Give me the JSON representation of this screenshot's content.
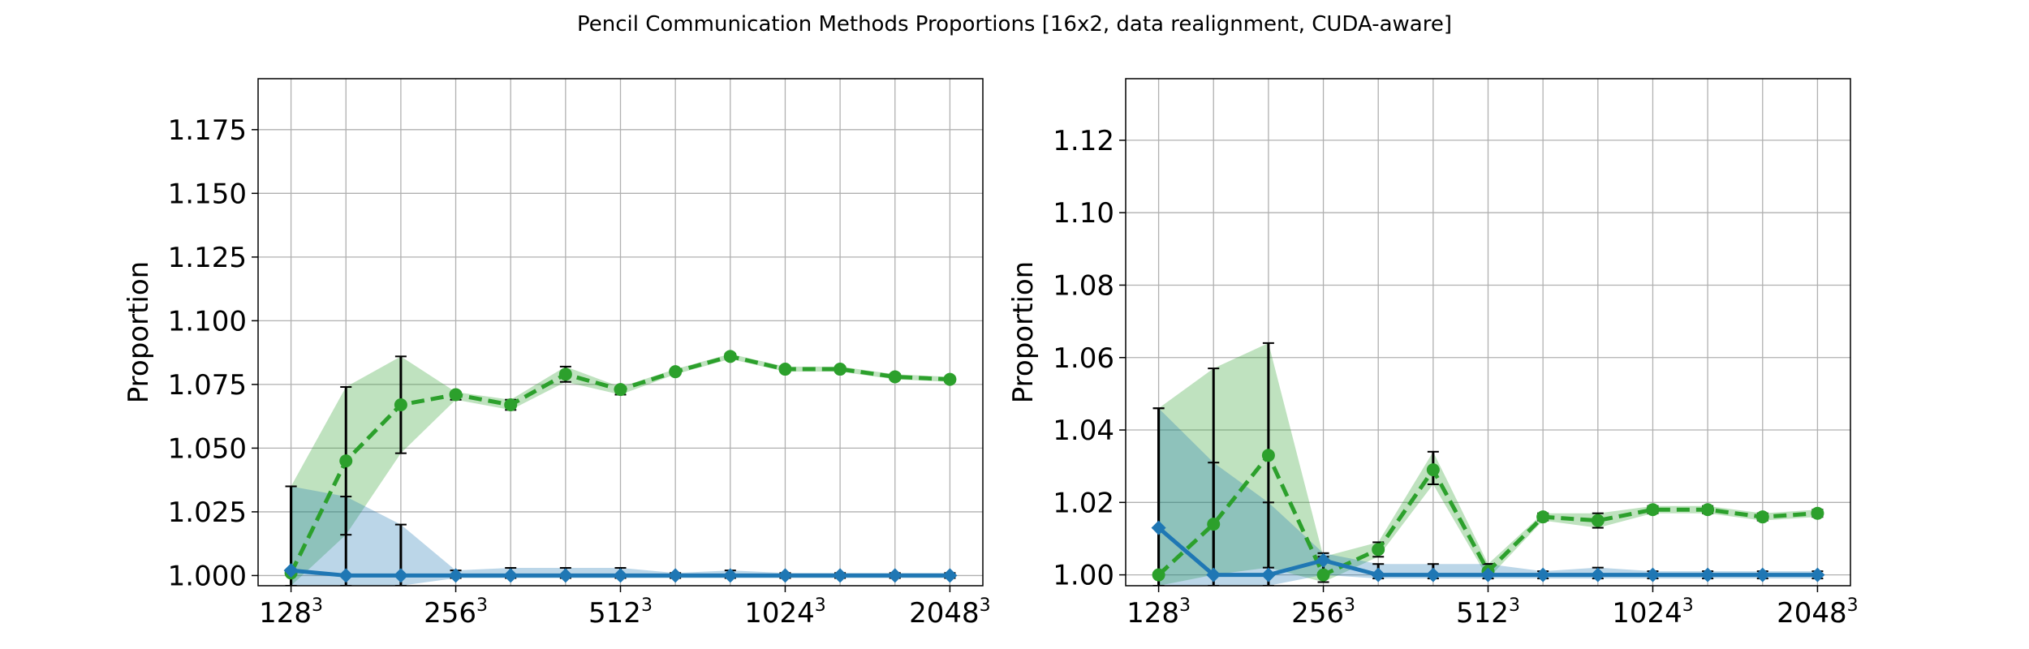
{
  "figure": {
    "title": "Pencil Communication Methods Proportions [16x2, data realignment, CUDA-aware]"
  },
  "colors": {
    "green": "#2ca02c",
    "blue": "#1f77b4",
    "green_band": "#2ca02c",
    "blue_band": "#1f77b4",
    "grid": "#b0b0b0",
    "errorbar": "#000000"
  },
  "chart_data": [
    {
      "type": "line",
      "ylabel": "Proportion",
      "xlabel": "",
      "x_positions": [
        0,
        1,
        2,
        3,
        4,
        5,
        6,
        7,
        8,
        9,
        10,
        11,
        12
      ],
      "xticks": [
        {
          "pos": 0,
          "base": "128",
          "exp": "3"
        },
        {
          "pos": 3,
          "base": "256",
          "exp": "3"
        },
        {
          "pos": 6,
          "base": "512",
          "exp": "3"
        },
        {
          "pos": 9,
          "base": "1024",
          "exp": "3"
        },
        {
          "pos": 12,
          "base": "2048",
          "exp": "3"
        }
      ],
      "xlim": [
        -0.6,
        12.6
      ],
      "ylim": [
        0.996,
        1.195
      ],
      "yticks": [
        "1.000",
        "1.025",
        "1.050",
        "1.075",
        "1.100",
        "1.125",
        "1.150",
        "1.175"
      ],
      "ytick_values": [
        1.0,
        1.025,
        1.05,
        1.075,
        1.1,
        1.125,
        1.15,
        1.175
      ],
      "grid": true,
      "series": [
        {
          "color": "green",
          "style": "dashed",
          "marker": "circle",
          "values": [
            1.001,
            1.045,
            1.067,
            1.071,
            1.067,
            1.079,
            1.073,
            1.08,
            1.086,
            1.081,
            1.081,
            1.078,
            1.077
          ],
          "lower": [
            0.996,
            1.016,
            1.048,
            1.069,
            1.065,
            1.076,
            1.071,
            1.079,
            1.085,
            1.08,
            1.08,
            1.077,
            1.076
          ],
          "upper": [
            1.035,
            1.074,
            1.086,
            1.072,
            1.069,
            1.082,
            1.074,
            1.081,
            1.087,
            1.082,
            1.082,
            1.079,
            1.078
          ]
        },
        {
          "color": "blue",
          "style": "solid",
          "marker": "diamond",
          "values": [
            1.002,
            1.0,
            1.0,
            1.0,
            1.0,
            1.0,
            1.0,
            1.0,
            1.0,
            1.0,
            1.0,
            1.0,
            1.0
          ],
          "lower": [
            0.996,
            0.996,
            0.996,
            0.999,
            0.999,
            0.999,
            0.999,
            0.999,
            0.999,
            0.999,
            0.999,
            0.999,
            0.999
          ],
          "upper": [
            1.035,
            1.031,
            1.02,
            1.002,
            1.003,
            1.003,
            1.003,
            1.001,
            1.002,
            1.001,
            1.001,
            1.001,
            1.001
          ]
        }
      ]
    },
    {
      "type": "line",
      "ylabel": "Proportion",
      "xlabel": "",
      "x_positions": [
        0,
        1,
        2,
        3,
        4,
        5,
        6,
        7,
        8,
        9,
        10,
        11,
        12
      ],
      "xticks": [
        {
          "pos": 0,
          "base": "128",
          "exp": "3"
        },
        {
          "pos": 3,
          "base": "256",
          "exp": "3"
        },
        {
          "pos": 6,
          "base": "512",
          "exp": "3"
        },
        {
          "pos": 9,
          "base": "1024",
          "exp": "3"
        },
        {
          "pos": 12,
          "base": "2048",
          "exp": "3"
        }
      ],
      "xlim": [
        -0.6,
        12.6
      ],
      "ylim": [
        0.997,
        1.137
      ],
      "yticks": [
        "1.00",
        "1.02",
        "1.04",
        "1.06",
        "1.08",
        "1.10",
        "1.12"
      ],
      "ytick_values": [
        1.0,
        1.02,
        1.04,
        1.06,
        1.08,
        1.1,
        1.12
      ],
      "grid": true,
      "series": [
        {
          "color": "green",
          "style": "dashed",
          "marker": "circle",
          "values": [
            1.0,
            1.014,
            1.033,
            1.0,
            1.007,
            1.029,
            1.001,
            1.016,
            1.015,
            1.018,
            1.018,
            1.016,
            1.017
          ],
          "lower": [
            0.997,
            1.0,
            1.002,
            0.998,
            1.005,
            1.025,
            0.999,
            1.015,
            1.013,
            1.017,
            1.017,
            1.015,
            1.016
          ],
          "upper": [
            1.046,
            1.057,
            1.064,
            1.005,
            1.009,
            1.034,
            1.003,
            1.017,
            1.017,
            1.019,
            1.019,
            1.017,
            1.018
          ]
        },
        {
          "color": "blue",
          "style": "solid",
          "marker": "diamond",
          "values": [
            1.013,
            1.0,
            1.0,
            1.004,
            1.0,
            1.0,
            1.0,
            1.0,
            1.0,
            1.0,
            1.0,
            1.0,
            1.0
          ],
          "lower": [
            0.997,
            0.997,
            0.997,
            1.0,
            0.999,
            0.999,
            0.999,
            0.999,
            0.999,
            0.999,
            0.999,
            0.999,
            0.999
          ],
          "upper": [
            1.046,
            1.031,
            1.02,
            1.006,
            1.003,
            1.003,
            1.003,
            1.001,
            1.002,
            1.001,
            1.001,
            1.001,
            1.001
          ]
        }
      ]
    }
  ]
}
